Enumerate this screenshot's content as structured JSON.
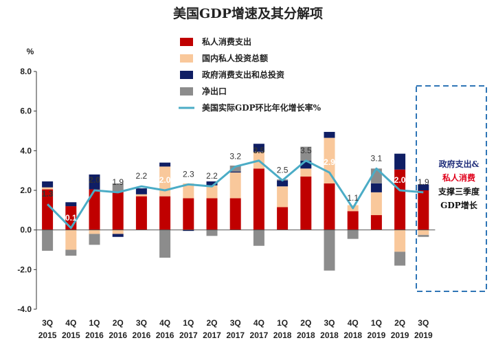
{
  "chart_data": {
    "type": "bar",
    "title": "美国GDP增速及其分解项",
    "ylabel": "%",
    "ylim": [
      -4,
      8
    ],
    "yticks": [
      "-4.0",
      "-2.0",
      "0.0",
      "2.0",
      "4.0",
      "6.0",
      "8.0"
    ],
    "categories": [
      {
        "q": "3Q",
        "y": "2015"
      },
      {
        "q": "4Q",
        "y": "2015"
      },
      {
        "q": "1Q",
        "y": "2016"
      },
      {
        "q": "2Q",
        "y": "2016"
      },
      {
        "q": "3Q",
        "y": "2016"
      },
      {
        "q": "4Q",
        "y": "2016"
      },
      {
        "q": "1Q",
        "y": "2017"
      },
      {
        "q": "2Q",
        "y": "2017"
      },
      {
        "q": "3Q",
        "y": "2017"
      },
      {
        "q": "4Q",
        "y": "2017"
      },
      {
        "q": "1Q",
        "y": "2018"
      },
      {
        "q": "2Q",
        "y": "2018"
      },
      {
        "q": "3Q",
        "y": "2018"
      },
      {
        "q": "4Q",
        "y": "2018"
      },
      {
        "q": "1Q",
        "y": "2019"
      },
      {
        "q": "2Q",
        "y": "2019"
      },
      {
        "q": "3Q",
        "y": "2019"
      }
    ],
    "series": [
      {
        "name": "私人消费支出",
        "color": "#c00000",
        "values": [
          2.05,
          1.2,
          2.05,
          1.95,
          1.7,
          1.7,
          1.6,
          1.6,
          1.6,
          3.1,
          1.15,
          2.7,
          2.35,
          0.95,
          0.75,
          3.05,
          2.0
        ]
      },
      {
        "name": "国内私人投资总额",
        "color": "#f9c89b",
        "values": [
          0.1,
          -1.0,
          -0.2,
          -0.2,
          0.1,
          1.5,
          0.75,
          0.65,
          1.3,
          0.85,
          1.05,
          0.4,
          2.3,
          0.3,
          1.15,
          -1.1,
          -0.25
        ]
      },
      {
        "name": "政府消费支出和总投资",
        "color": "#0f1e64",
        "values": [
          0.3,
          0.2,
          0.75,
          -0.15,
          0.3,
          0.2,
          -0.05,
          0.2,
          0.05,
          0.4,
          0.3,
          0.4,
          0.3,
          0.0,
          0.45,
          0.8,
          0.3
        ]
      },
      {
        "name": "净出口",
        "color": "#8c8c8c",
        "values": [
          -1.05,
          -0.3,
          -0.55,
          0.4,
          0.0,
          -1.4,
          0.0,
          -0.3,
          0.3,
          -0.8,
          0.05,
          0.7,
          -2.05,
          -0.45,
          0.75,
          -0.7,
          -0.1
        ]
      }
    ],
    "line": {
      "name": "美国实际GDP环比年化增长率%",
      "color": "#4bacc6",
      "values": [
        1.3,
        0.1,
        2.0,
        1.9,
        2.2,
        2.0,
        2.3,
        2.2,
        3.2,
        3.5,
        2.5,
        3.5,
        2.9,
        1.1,
        3.1,
        2.0,
        1.9
      ],
      "labels": [
        "1.3",
        "0.1",
        "2.0",
        "1.9",
        "2.2",
        "2.0",
        "2.3",
        "2.2",
        "3.2",
        "3.5",
        "2.5",
        "3.5",
        "2.9",
        "1.1",
        "3.1",
        "2.0",
        "1.9"
      ],
      "label_color": [
        "dark",
        "white",
        "dark",
        "dark",
        "dark",
        "white",
        "dark",
        "dark",
        "dark",
        "dark",
        "dark",
        "dark",
        "white",
        "dark",
        "dark",
        "white",
        "dark"
      ],
      "label_bold": [
        true,
        true,
        true,
        false,
        false,
        true,
        false,
        false,
        false,
        true,
        false,
        false,
        true,
        false,
        false,
        true,
        false
      ]
    },
    "annotation": {
      "lines": [
        "政府支出&",
        "私人消费",
        "支撑三季度",
        "GDP增长"
      ],
      "colors": [
        "#1f2d7a",
        "#e0001b",
        "#111111",
        "#111111"
      ]
    },
    "legend_position": "top-center"
  }
}
